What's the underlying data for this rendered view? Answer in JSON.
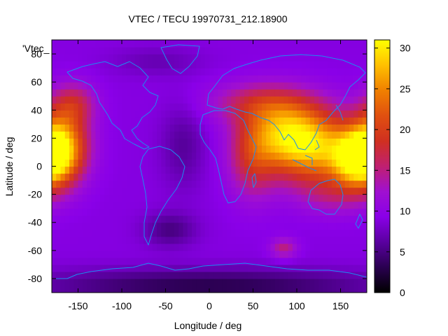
{
  "chart_data": {
    "type": "heatmap",
    "title": "VTEC / TECU 19970731_212.18900",
    "xlabel": "Longitude / deg",
    "ylabel": "Latitude / deg",
    "series_label": "'Vtec_",
    "xlim": [
      -180,
      180
    ],
    "ylim": [
      -90,
      90
    ],
    "zlim": [
      0,
      31
    ],
    "x_ticks": [
      -150,
      -100,
      -50,
      0,
      50,
      100,
      150
    ],
    "y_ticks": [
      -80,
      -60,
      -40,
      -20,
      0,
      20,
      40,
      60,
      80
    ],
    "colorbar_ticks": [
      0,
      5,
      10,
      15,
      20,
      25,
      30
    ],
    "colormap": [
      "#000000",
      "#2a0050",
      "#5a00a0",
      "#8a00e8",
      "#a010d0",
      "#c02070",
      "#d03020",
      "#e05010",
      "#f08000",
      "#ffc000",
      "#ffff00"
    ],
    "grid_step_deg": 5,
    "background_vtec": 9,
    "features": [
      {
        "lon": 115,
        "lat": 15,
        "rx": 45,
        "ry": 25,
        "vtec": 18
      },
      {
        "lon": 170,
        "lat": 5,
        "rx": 30,
        "ry": 20,
        "vtec": 19
      },
      {
        "lon": 80,
        "lat": 25,
        "rx": 40,
        "ry": 22,
        "vtec": 10
      },
      {
        "lon": 50,
        "lat": 5,
        "rx": 28,
        "ry": 28,
        "vtec": 8
      },
      {
        "lon": 60,
        "lat": 45,
        "rx": 60,
        "ry": 15,
        "vtec": 7
      },
      {
        "lon": -170,
        "lat": 15,
        "rx": 30,
        "ry": 25,
        "vtec": 17
      },
      {
        "lon": -155,
        "lat": 45,
        "rx": 25,
        "ry": 15,
        "vtec": 7
      },
      {
        "lon": 140,
        "lat": -20,
        "rx": 40,
        "ry": 15,
        "vtec": 4
      },
      {
        "lon": 85,
        "lat": -58,
        "rx": 15,
        "ry": 7,
        "vtec": 6
      },
      {
        "lon": -30,
        "lat": 15,
        "rx": 25,
        "ry": 30,
        "vtec": -3
      },
      {
        "lon": -45,
        "lat": -45,
        "rx": 30,
        "ry": 12,
        "vtec": -4
      },
      {
        "lon": 0,
        "lat": -85,
        "rx": 200,
        "ry": 12,
        "vtec": -6
      },
      {
        "lon": -60,
        "lat": 75,
        "rx": 50,
        "ry": 10,
        "vtec": -2
      }
    ]
  }
}
